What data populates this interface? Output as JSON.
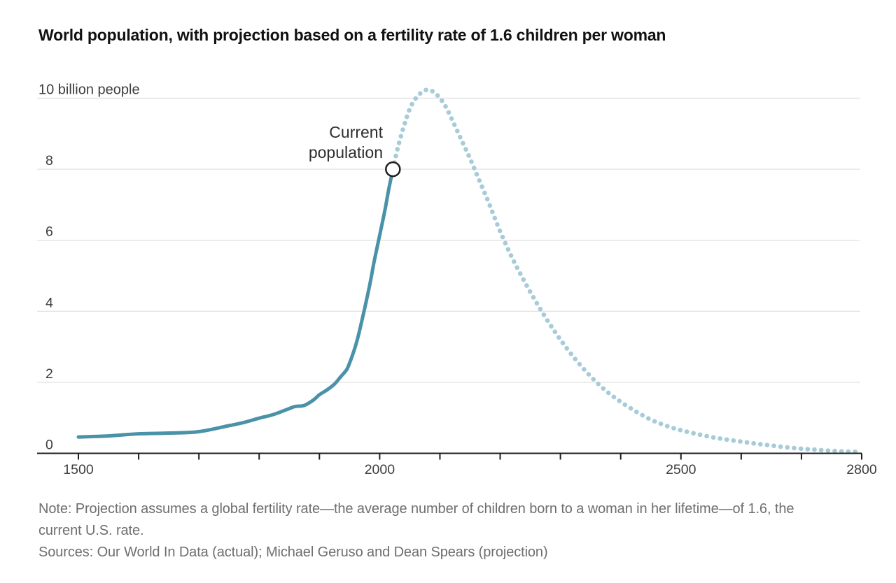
{
  "title": "World population, with projection based on a fertility rate of 1.6 children per woman",
  "annotation": {
    "line1": "Current",
    "line2": "population"
  },
  "notes": {
    "note_line1": "Note: Projection assumes a global fertility rate—the average number of children born to a woman in her lifetime—of 1.6, the",
    "note_line2": "current U.S. rate.",
    "sources": "Sources: Our World In Data (actual); Michael Geruso and Dean Spears (projection)"
  },
  "colors": {
    "actual_line": "#4a92a8",
    "projection_dots": "#a7cbd8",
    "gridline": "#e4e4e4",
    "axis": "#1d1d1d",
    "axis_label": "#3d3d3d",
    "note_text": "#6e6e6e",
    "annotation_text": "#2e2e2e",
    "marker_fill": "#ffffff",
    "marker_stroke": "#1f1f1f"
  },
  "chart_data": {
    "type": "line",
    "title": "World population, with projection based on a fertility rate of 1.6 children per woman",
    "xlabel": "",
    "ylabel": "billion people",
    "x_axis": {
      "min": 1500,
      "max": 2800,
      "minor_ticks": [
        1500,
        1600,
        1700,
        1800,
        1900,
        2000,
        2100,
        2200,
        2300,
        2400,
        2500,
        2600,
        2700,
        2800
      ],
      "labeled_ticks": [
        1500,
        2000,
        2500,
        2800
      ]
    },
    "y_axis": {
      "min": 0,
      "max": 10,
      "gridline_values": [
        2,
        4,
        6,
        8,
        10
      ],
      "tick_label_values": [
        0,
        2,
        4,
        6,
        8
      ],
      "top_label": "10 billion people",
      "grid": true
    },
    "series": [
      {
        "name": "actual",
        "style": "solid",
        "color": "#4a92a8",
        "x": [
          1500,
          1550,
          1600,
          1650,
          1700,
          1750,
          1775,
          1800,
          1825,
          1850,
          1860,
          1875,
          1890,
          1900,
          1913,
          1925,
          1935,
          1945,
          1950,
          1955,
          1960,
          1965,
          1970,
          1975,
          1980,
          1985,
          1990,
          1995,
          2000,
          2005,
          2010,
          2015,
          2022
        ],
        "y": [
          0.46,
          0.49,
          0.55,
          0.57,
          0.61,
          0.78,
          0.87,
          0.99,
          1.1,
          1.26,
          1.32,
          1.35,
          1.5,
          1.65,
          1.79,
          1.95,
          2.15,
          2.35,
          2.54,
          2.77,
          3.03,
          3.34,
          3.7,
          4.07,
          4.46,
          4.87,
          5.33,
          5.74,
          6.14,
          6.54,
          6.96,
          7.43,
          8.0
        ]
      },
      {
        "name": "projection",
        "style": "dotted",
        "color": "#a7cbd8",
        "x": [
          2022,
          2030,
          2040,
          2050,
          2060,
          2070,
          2080,
          2090,
          2100,
          2110,
          2120,
          2135,
          2150,
          2165,
          2180,
          2200,
          2220,
          2240,
          2260,
          2280,
          2300,
          2320,
          2340,
          2360,
          2380,
          2400,
          2425,
          2450,
          2475,
          2500,
          2525,
          2550,
          2575,
          2600,
          2625,
          2650,
          2675,
          2700,
          2725,
          2750,
          2775,
          2800
        ],
        "y": [
          8.0,
          8.6,
          9.2,
          9.7,
          10.0,
          10.17,
          10.24,
          10.17,
          10.0,
          9.75,
          9.4,
          8.85,
          8.3,
          7.7,
          7.1,
          6.25,
          5.5,
          4.85,
          4.25,
          3.7,
          3.2,
          2.75,
          2.35,
          2.0,
          1.7,
          1.45,
          1.18,
          0.95,
          0.78,
          0.65,
          0.55,
          0.46,
          0.39,
          0.33,
          0.27,
          0.22,
          0.17,
          0.13,
          0.1,
          0.07,
          0.05,
          0.04
        ]
      }
    ],
    "marker": {
      "label": "Current population",
      "year": 2022,
      "value": 8.0
    },
    "legend": "none"
  }
}
